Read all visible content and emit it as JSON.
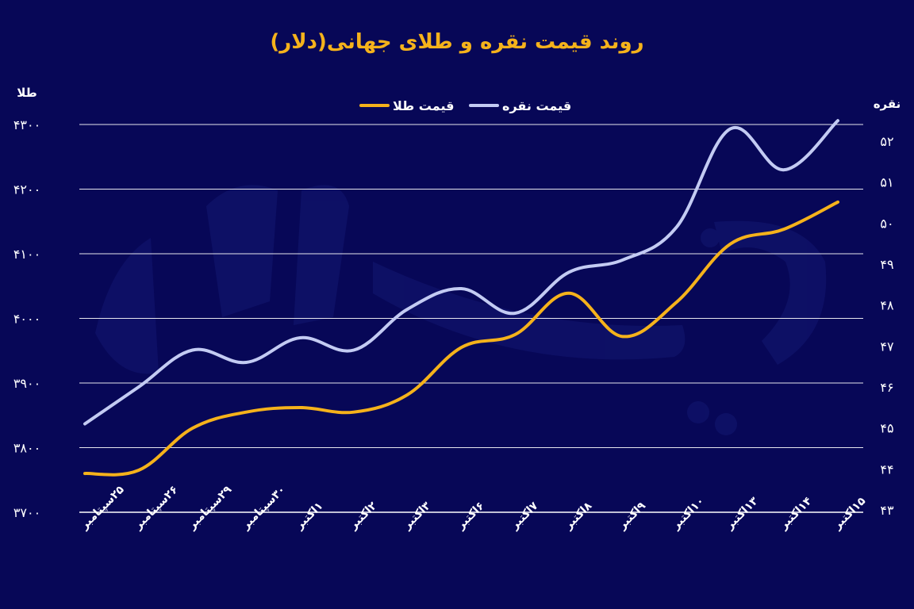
{
  "chart_data": {
    "type": "line",
    "title": "روند قیمت نقره و طلای جهانی(دلار)",
    "y_left_label": "طلا",
    "y_right_label": "نقره",
    "categories": [
      "۲۵سپتامبر",
      "۲۶سپتامبر",
      "۲۹سپتامبر",
      "۳۰سپتامبر",
      "۱اکتبر",
      "۲اکتبر",
      "۳اکتبر",
      "۶اکتبر",
      "۷اکتبر",
      "۸اکتبر",
      "۹اکتبر",
      "۱۰اکتبر",
      "۱۳اکتبر",
      "۱۴اکتبر",
      "۱۵اکتبر"
    ],
    "y_left_ticks": [
      "۴۳۰۰",
      "۴۲۰۰",
      "۴۱۰۰",
      "۴۰۰۰",
      "۳۹۰۰",
      "۳۸۰۰",
      "۳۷۰۰"
    ],
    "y_right_ticks": [
      "۵۲",
      "۵۱",
      "۵۰",
      "۴۹",
      "۴۸",
      "۴۷",
      "۴۶",
      "۴۵",
      "۴۴",
      "۴۳"
    ],
    "y_left_range": [
      3700,
      4300
    ],
    "y_right_range": [
      43,
      52.5
    ],
    "grid": true,
    "legend_position": "top-center",
    "series": [
      {
        "name": "قیمت نقره",
        "axis": "right",
        "color": "#C3CBF3",
        "values": [
          45.1,
          46.0,
          46.9,
          46.6,
          47.2,
          46.9,
          47.9,
          48.4,
          47.8,
          48.8,
          49.1,
          49.9,
          52.3,
          51.3,
          52.5
        ]
      },
      {
        "name": "قیمت طلا",
        "axis": "left",
        "color": "#F5B21B",
        "values": [
          3760,
          3765,
          3830,
          3855,
          3862,
          3855,
          3882,
          3955,
          3975,
          4039,
          3972,
          4025,
          4115,
          4138,
          4180
        ]
      }
    ]
  }
}
